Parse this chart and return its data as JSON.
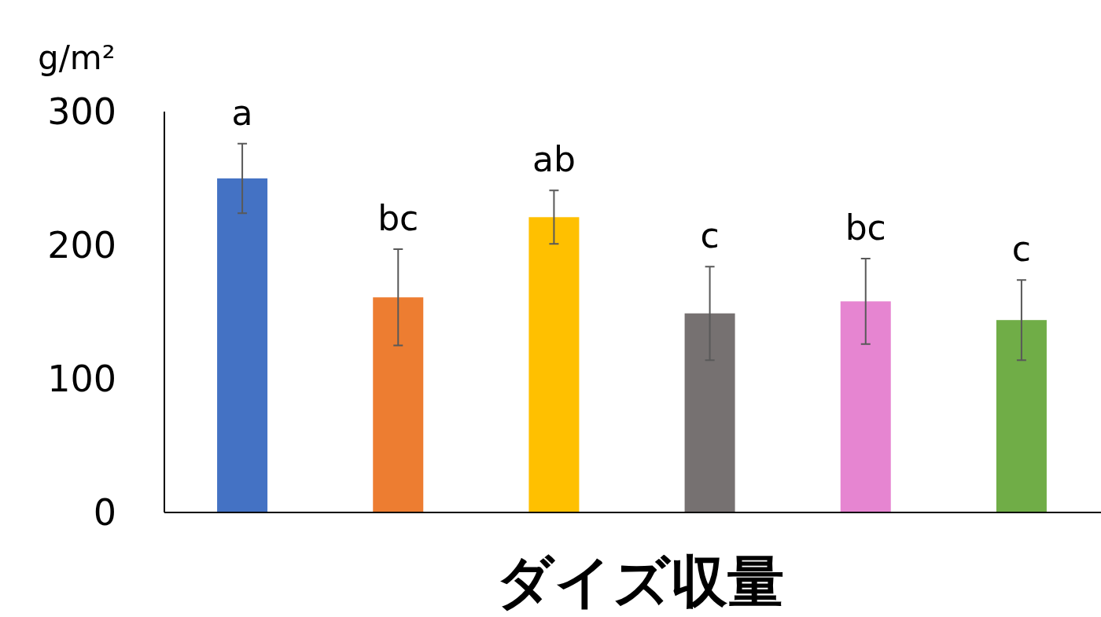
{
  "chart_data": {
    "type": "bar",
    "xlabel": "ダイズ収量",
    "ylabel": "g/m²",
    "categories": [
      null,
      null,
      null,
      null,
      null,
      null
    ],
    "values": [
      250,
      161,
      221,
      149,
      158,
      144
    ],
    "errors": [
      26,
      36,
      20,
      35,
      32,
      30
    ],
    "colors": [
      "#4472c4",
      "#ed7d31",
      "#ffc000",
      "#767171",
      "#e685d1",
      "#70ad47"
    ],
    "ylim": [
      0,
      300
    ],
    "yticks": [
      0,
      100,
      200,
      300
    ],
    "grid": false,
    "annotations": [
      "a",
      "bc",
      "ab",
      "c",
      "bc",
      "c"
    ]
  }
}
